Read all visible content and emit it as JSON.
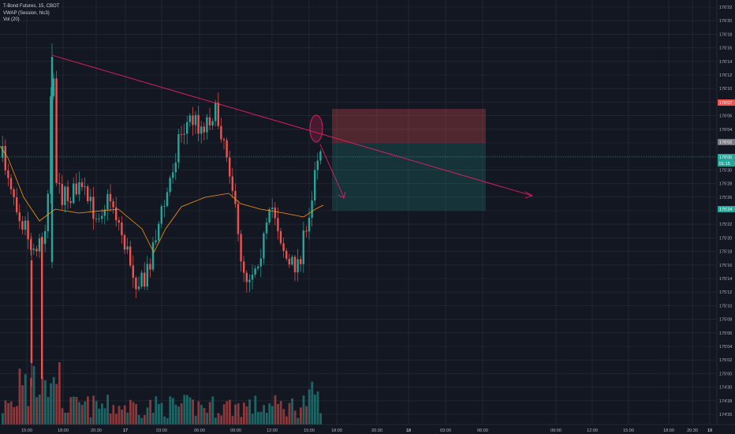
{
  "legend": {
    "symbol": "T-Bond Futures, 15, CBOT",
    "vwap": "VWAP (Session, hlc3)",
    "vol": "Vol (20)"
  },
  "colors": {
    "background": "#131722",
    "grid": "#2a2e39",
    "up": "#26a69a",
    "down": "#ef5350",
    "trendline": "#e91e63",
    "vwap": "#ff9800",
    "axis_text": "#b2b5be"
  },
  "price_axis": {
    "labels": [
      "176'22",
      "176'20",
      "176'18",
      "176'16",
      "176'14",
      "176'12",
      "176'10",
      "176'08",
      "176'06",
      "176'04",
      "176'02",
      "176'00",
      "175'30",
      "175'28",
      "175'26",
      "175'24",
      "175'22",
      "175'20",
      "175'18",
      "175'16",
      "175'14",
      "175'12",
      "175'10",
      "175'08",
      "175'06",
      "175'04",
      "175'02",
      "175'00",
      "174'30",
      "174'28",
      "174'26"
    ],
    "badges": [
      {
        "text": "176'07",
        "color": "#ef5350"
      },
      {
        "text": "176'02",
        "color": "#787b86"
      },
      {
        "text": "176'00",
        "color": "#26a69a"
      },
      {
        "text": "01:15",
        "color": "#26a69a"
      },
      {
        "text": "175'24",
        "color": "#26a69a"
      }
    ]
  },
  "time_axis": {
    "labels": [
      "15:00",
      "18:00",
      "20:30",
      "17",
      "03:00",
      "06:00",
      "09:00",
      "12:00",
      "15:00",
      "18:00",
      "20:30",
      "18",
      "03:00",
      "06:00",
      "09:00",
      "12:00",
      "15:00",
      "18:00",
      "20:30",
      "19"
    ]
  },
  "chart_data": {
    "type": "candlestick",
    "series_name": "T-Bond Futures, 15, CBOT",
    "y_range": [
      "174'26",
      "176'22"
    ],
    "trendline": {
      "from": {
        "time": "16 17:15",
        "price": "176'15"
      },
      "to": {
        "time": "18 09:15",
        "price": "175'26"
      }
    },
    "short_position": {
      "entry": "176'02",
      "stop": "176'07",
      "target": "175'24"
    },
    "projection_arrow": {
      "from": "176'02",
      "to": "175'26"
    },
    "annotation": "ellipse highlight at trendline touch near 176'03",
    "vwap_label": "VWAP (Session, hlc3)",
    "volume_label": "Vol (20)"
  }
}
